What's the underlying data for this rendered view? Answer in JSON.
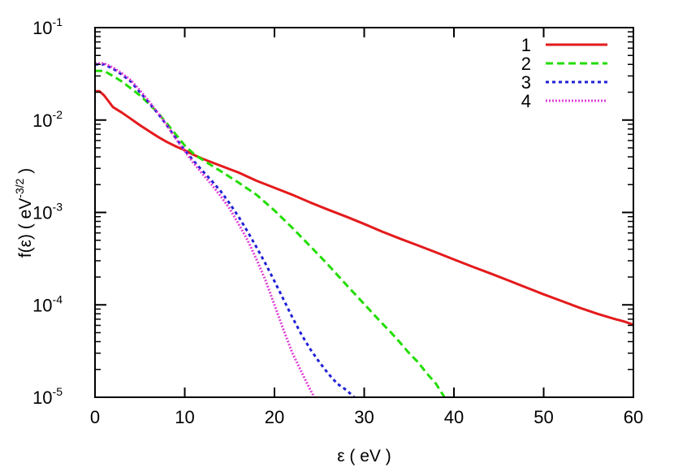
{
  "chart_data": {
    "type": "line",
    "title": "",
    "xlabel": "ε ( eV )",
    "ylabel_prefix": "f(ε) ( eV",
    "ylabel_exponent": "-3/2",
    "ylabel_suffix": " )",
    "xlim": [
      0,
      60
    ],
    "ylim": [
      1e-05,
      0.1
    ],
    "yscale": "log",
    "grid": false,
    "legend_position": "top-right",
    "x_ticks": [
      {
        "value": 0,
        "label": "0"
      },
      {
        "value": 10,
        "label": "10"
      },
      {
        "value": 20,
        "label": "20"
      },
      {
        "value": 30,
        "label": "30"
      },
      {
        "value": 40,
        "label": "40"
      },
      {
        "value": 50,
        "label": "50"
      },
      {
        "value": 60,
        "label": "60"
      }
    ],
    "y_ticks": [
      {
        "value": 1e-05,
        "base": "10",
        "exp": "-5"
      },
      {
        "value": 0.0001,
        "base": "10",
        "exp": "-4"
      },
      {
        "value": 0.001,
        "base": "10",
        "exp": "-3"
      },
      {
        "value": 0.01,
        "base": "10",
        "exp": "-2"
      },
      {
        "value": 0.1,
        "base": "10",
        "exp": "-1"
      }
    ],
    "series": [
      {
        "name": "1",
        "color": "#e41a1c",
        "dash": "solid",
        "x": [
          0,
          0.5,
          1,
          1.5,
          2,
          3,
          4,
          5,
          6,
          7,
          8,
          9,
          10,
          11,
          12,
          14,
          16,
          18,
          20,
          22,
          24,
          26,
          28,
          30,
          32,
          34,
          36,
          38,
          40,
          42,
          44,
          46,
          48,
          50,
          52,
          54,
          56,
          58,
          59,
          60
        ],
        "y": [
          0.0205,
          0.0205,
          0.0185,
          0.016,
          0.0138,
          0.012,
          0.0103,
          0.0088,
          0.0076,
          0.0066,
          0.0058,
          0.0052,
          0.0047,
          0.0042,
          0.0038,
          0.0032,
          0.0027,
          0.0022,
          0.00185,
          0.00155,
          0.00128,
          0.00107,
          0.0009,
          0.00075,
          0.00062,
          0.00052,
          0.00044,
          0.00037,
          0.00031,
          0.00026,
          0.00022,
          0.000185,
          0.000155,
          0.00013,
          0.00011,
          9.3e-05,
          8e-05,
          7e-05,
          6.6e-05,
          6.1e-05
        ]
      },
      {
        "name": "2",
        "color": "#22dd00",
        "dash": "dashed",
        "x": [
          0,
          1,
          2,
          3,
          4,
          5,
          6,
          7,
          8,
          9,
          10,
          11,
          12,
          14,
          16,
          18,
          20,
          22,
          24,
          26,
          28,
          30,
          32,
          33,
          34,
          35,
          36,
          37,
          38,
          39
        ],
        "y": [
          0.034,
          0.034,
          0.03,
          0.026,
          0.022,
          0.0185,
          0.015,
          0.012,
          0.0092,
          0.007,
          0.0053,
          0.0043,
          0.0037,
          0.0028,
          0.0021,
          0.00155,
          0.00105,
          0.00068,
          0.00043,
          0.00027,
          0.000165,
          0.000102,
          6.3e-05,
          5e-05,
          3.9e-05,
          3e-05,
          2.4e-05,
          1.8e-05,
          1.4e-05,
          9.8e-06
        ]
      },
      {
        "name": "3",
        "color": "#1f1fd6",
        "dash": "dotted",
        "x": [
          0,
          1,
          2,
          3,
          4,
          5,
          6,
          7,
          8,
          9,
          10,
          11,
          12,
          13,
          14,
          15,
          16,
          17,
          18,
          19,
          20,
          21,
          22,
          23,
          24,
          25,
          26,
          27,
          28,
          29
        ],
        "y": [
          0.04,
          0.04,
          0.036,
          0.031,
          0.026,
          0.02,
          0.0155,
          0.0118,
          0.0088,
          0.0064,
          0.0047,
          0.0036,
          0.0028,
          0.0022,
          0.0017,
          0.00125,
          0.0009,
          0.00062,
          0.00042,
          0.00028,
          0.00018,
          0.000115,
          7.3e-05,
          4.8e-05,
          3.3e-05,
          2.4e-05,
          1.8e-05,
          1.4e-05,
          1.2e-05,
          9.8e-06
        ]
      },
      {
        "name": "4",
        "color": "#e040d8",
        "dash": "fine-dotted",
        "x": [
          0,
          1,
          2,
          3,
          4,
          5,
          6,
          7,
          8,
          9,
          10,
          11,
          12,
          13,
          14,
          15,
          16,
          17,
          18,
          19,
          20,
          21,
          22,
          23,
          23.5,
          24,
          24.5
        ],
        "y": [
          0.041,
          0.041,
          0.037,
          0.032,
          0.027,
          0.021,
          0.016,
          0.012,
          0.0088,
          0.0063,
          0.0046,
          0.0034,
          0.0026,
          0.002,
          0.0015,
          0.0011,
          0.00075,
          0.0005,
          0.00031,
          0.000185,
          0.0001,
          5.4e-05,
          3e-05,
          1.9e-05,
          1.5e-05,
          1.2e-05,
          9.8e-06
        ]
      }
    ]
  }
}
